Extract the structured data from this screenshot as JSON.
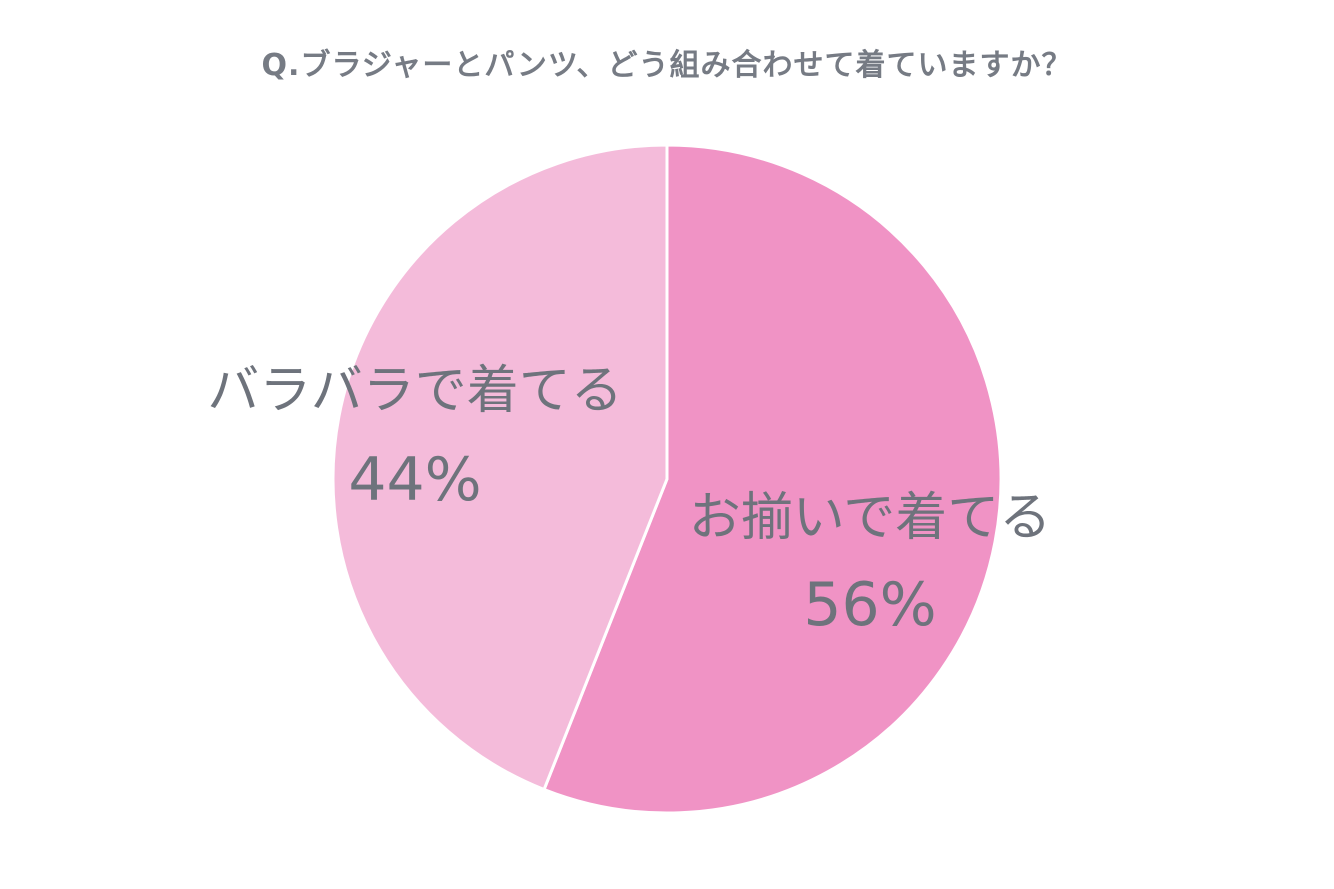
{
  "chart_data": {
    "type": "pie",
    "title": "Q.ブラジャーとパンツ、どう組み合わせて着ていますか？",
    "slices": [
      {
        "label": "お揃いで着てる",
        "value": 56,
        "display": "56%",
        "color": "#f093c5"
      },
      {
        "label": "バラバラで着てる",
        "value": 44,
        "display": "44%",
        "color": "#f4bbda"
      }
    ]
  }
}
